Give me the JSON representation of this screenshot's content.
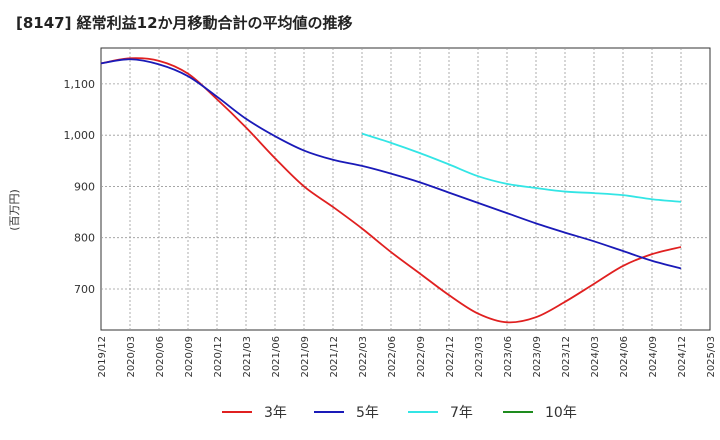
{
  "chart_data": {
    "type": "line",
    "title": "[8147]  経常利益12か月移動合計の平均値の推移",
    "ylabel": "(百万円)",
    "xlabel": "",
    "ylim": [
      620,
      1170
    ],
    "yticks": [
      700,
      800,
      900,
      "1,000",
      "1,100"
    ],
    "x_categories": [
      "2019/12",
      "2020/03",
      "2020/06",
      "2020/09",
      "2020/12",
      "2021/03",
      "2021/06",
      "2021/09",
      "2021/12",
      "2022/03",
      "2022/06",
      "2022/09",
      "2022/12",
      "2023/03",
      "2023/06",
      "2023/09",
      "2023/12",
      "2024/03",
      "2024/06",
      "2024/09",
      "2024/12",
      "2025/03"
    ],
    "grid": true,
    "legend_position": "bottom",
    "series": [
      {
        "name": "3年",
        "color": "#e02020",
        "start_index": 0,
        "values": [
          1140,
          1150,
          1145,
          1120,
          1070,
          1015,
          955,
          900,
          860,
          818,
          772,
          730,
          688,
          652,
          635,
          645,
          675,
          710,
          745,
          768,
          782
        ]
      },
      {
        "name": "5年",
        "color": "#1a1ab8",
        "start_index": 0,
        "values": [
          1140,
          1148,
          1138,
          1115,
          1075,
          1032,
          998,
          970,
          952,
          940,
          925,
          908,
          888,
          868,
          848,
          828,
          810,
          793,
          774,
          755,
          740
        ]
      },
      {
        "name": "7年",
        "color": "#33e5e5",
        "start_index": 9,
        "values": [
          1003,
          985,
          965,
          943,
          920,
          905,
          897,
          890,
          887,
          883,
          875,
          870
        ]
      },
      {
        "name": "10年",
        "color": "#1e8c1e",
        "start_index": 0,
        "values": []
      }
    ]
  }
}
